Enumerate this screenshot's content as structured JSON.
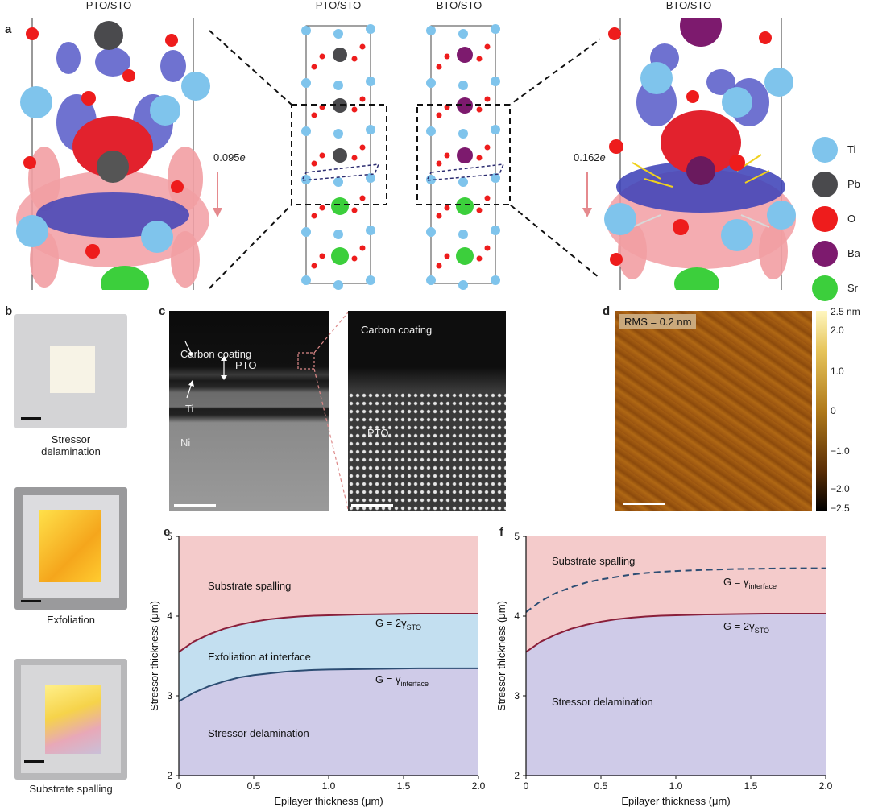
{
  "panel_a": {
    "label": "a",
    "title_left": "PTO/STO",
    "title_mid_left": "PTO/STO",
    "title_mid_right": "BTO/STO",
    "title_right": "BTO/STO",
    "charge_left": "0.095",
    "charge_right": "0.162",
    "charge_unit": "e",
    "legend": [
      {
        "name": "Ti",
        "color": "#7fc4ec"
      },
      {
        "name": "Pb",
        "color": "#4a4a4d"
      },
      {
        "name": "O",
        "color": "#ee1c1c"
      },
      {
        "name": "Ba",
        "color": "#7d1a6e"
      },
      {
        "name": "Sr",
        "color": "#3ccf3c"
      }
    ]
  },
  "panel_b": {
    "label": "b",
    "captions": [
      "Stressor\ndelamination",
      "Exfoliation",
      "Substrate spalling"
    ]
  },
  "panel_c": {
    "label": "c",
    "left_labels": {
      "carbon": "Carbon coating",
      "pto": "PTO",
      "ti": "Ti",
      "ni": "Ni"
    },
    "right_labels": {
      "carbon": "Carbon coating",
      "pto": "PTO"
    }
  },
  "panel_d": {
    "label": "d",
    "rms": "RMS = 0.2 nm",
    "colorbar_ticks": [
      "2.5 nm",
      "2.0",
      "1.0",
      "0",
      "−1.0",
      "−2.0",
      "−2.5"
    ]
  },
  "chart_data": [
    {
      "id": "e",
      "type": "area",
      "xlabel": "Epilayer thickness (μm)",
      "ylabel": "Stressor thickness (μm)",
      "xlim": [
        0,
        2.0
      ],
      "ylim": [
        2,
        5
      ],
      "xticks": [
        "0",
        "0.5",
        "1.0",
        "1.5",
        "2.0"
      ],
      "yticks": [
        "2",
        "3",
        "4",
        "5"
      ],
      "curves": [
        {
          "name": "G = 2γSTO",
          "style": "solid",
          "color": "#8a1f3a",
          "x": [
            0,
            0.1,
            0.2,
            0.3,
            0.4,
            0.5,
            0.6,
            0.7,
            0.8,
            0.9,
            1.0,
            1.2,
            1.4,
            1.6,
            1.8,
            2.0
          ],
          "y": [
            3.55,
            3.68,
            3.77,
            3.84,
            3.89,
            3.93,
            3.96,
            3.98,
            3.995,
            4.005,
            4.01,
            4.02,
            4.025,
            4.03,
            4.03,
            4.03
          ]
        },
        {
          "name": "G = γinterface",
          "style": "solid",
          "color": "#2c4d73",
          "x": [
            0,
            0.1,
            0.2,
            0.3,
            0.4,
            0.5,
            0.6,
            0.7,
            0.8,
            0.9,
            1.0,
            1.2,
            1.4,
            1.6,
            1.8,
            2.0
          ],
          "y": [
            2.93,
            3.04,
            3.12,
            3.18,
            3.23,
            3.26,
            3.28,
            3.3,
            3.315,
            3.325,
            3.33,
            3.335,
            3.34,
            3.345,
            3.345,
            3.345
          ]
        }
      ],
      "regions": [
        "Substrate spalling",
        "Exfoliation at interface",
        "Stressor delamination"
      ],
      "annotations": [
        {
          "text": "G = 2γ",
          "sub": "STO"
        },
        {
          "text": "G = γ",
          "sub": "interface"
        }
      ]
    },
    {
      "id": "f",
      "type": "area",
      "xlabel": "Epilayer thickness (μm)",
      "ylabel": "Stressor thickness (μm)",
      "xlim": [
        0,
        2.0
      ],
      "ylim": [
        2,
        5
      ],
      "xticks": [
        "0",
        "0.5",
        "1.0",
        "1.5",
        "2.0"
      ],
      "yticks": [
        "2",
        "3",
        "4",
        "5"
      ],
      "curves": [
        {
          "name": "G = γinterface",
          "style": "dashed",
          "color": "#2c4d73",
          "x": [
            0,
            0.1,
            0.2,
            0.3,
            0.4,
            0.5,
            0.6,
            0.7,
            0.8,
            0.9,
            1.0,
            1.2,
            1.4,
            1.6,
            1.8,
            2.0
          ],
          "y": [
            4.05,
            4.19,
            4.29,
            4.36,
            4.42,
            4.46,
            4.49,
            4.52,
            4.54,
            4.555,
            4.565,
            4.58,
            4.59,
            4.595,
            4.6,
            4.6
          ]
        },
        {
          "name": "G = 2γSTO",
          "style": "solid",
          "color": "#8a1f3a",
          "x": [
            0,
            0.1,
            0.2,
            0.3,
            0.4,
            0.5,
            0.6,
            0.7,
            0.8,
            0.9,
            1.0,
            1.2,
            1.4,
            1.6,
            1.8,
            2.0
          ],
          "y": [
            3.55,
            3.68,
            3.77,
            3.84,
            3.89,
            3.93,
            3.96,
            3.98,
            3.995,
            4.005,
            4.01,
            4.02,
            4.025,
            4.03,
            4.03,
            4.03
          ]
        }
      ],
      "regions": [
        "Substrate spalling",
        "Stressor delamination"
      ],
      "annotations": [
        {
          "text": "G = γ",
          "sub": "interface"
        },
        {
          "text": "G = 2γ",
          "sub": "STO"
        }
      ]
    }
  ]
}
